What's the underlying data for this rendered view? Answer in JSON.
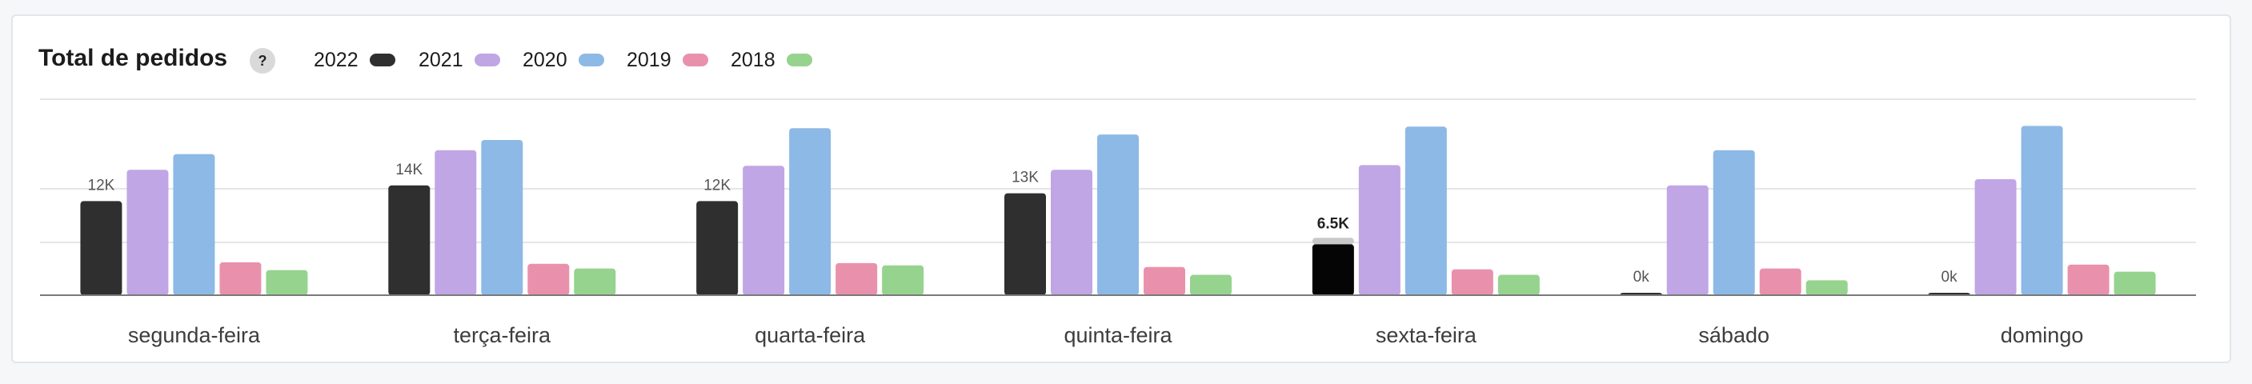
{
  "header": {
    "title": "Total de pedidos",
    "help_label": "?"
  },
  "legend": [
    {
      "label": "2022",
      "color": "#2f2f2f"
    },
    {
      "label": "2021",
      "color": "#c0a6e4"
    },
    {
      "label": "2020",
      "color": "#8db9e6"
    },
    {
      "label": "2019",
      "color": "#e991ac"
    },
    {
      "label": "2018",
      "color": "#96d38e"
    }
  ],
  "chart_data": {
    "type": "bar",
    "title": "Total de pedidos",
    "categories": [
      "segunda-feira",
      "terça-feira",
      "quarta-feira",
      "quinta-feira",
      "sexta-feira",
      "sábado",
      "domingo"
    ],
    "series": [
      {
        "name": "2022",
        "color": "#2f2f2f",
        "values": [
          12000,
          14000,
          12000,
          13000,
          6500,
          0,
          0
        ],
        "labels": [
          "12K",
          "14K",
          "12K",
          "13K",
          "6.5K",
          "0k",
          "0k"
        ]
      },
      {
        "name": "2021",
        "color": "#c0a6e4",
        "values": [
          16000,
          18500,
          16500,
          16000,
          16600,
          14000,
          14800
        ]
      },
      {
        "name": "2020",
        "color": "#8db9e6",
        "values": [
          18000,
          19800,
          21300,
          20500,
          21500,
          18500,
          21600
        ]
      },
      {
        "name": "2019",
        "color": "#e991ac",
        "values": [
          4200,
          4000,
          4100,
          3600,
          3300,
          3400,
          3900
        ]
      },
      {
        "name": "2018",
        "color": "#96d38e",
        "values": [
          3200,
          3400,
          3800,
          2600,
          2600,
          1900,
          3000
        ]
      }
    ],
    "highlight_category": "sexta-feira",
    "highlight_color": "#050505",
    "ylim": [
      0,
      25000
    ],
    "grid": true,
    "legend_position": "top"
  }
}
